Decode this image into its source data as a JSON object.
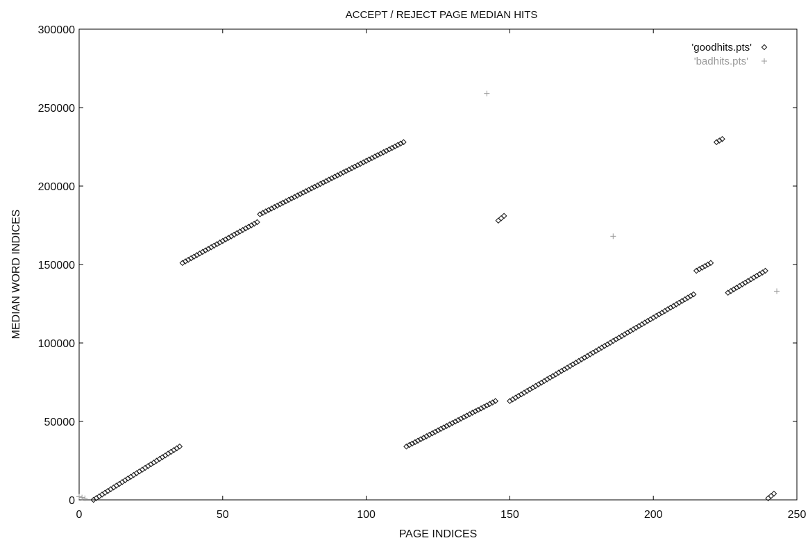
{
  "chart_data": {
    "type": "scatter",
    "title": "ACCEPT / REJECT PAGE MEDIAN HITS",
    "xlabel": "PAGE INDICES",
    "ylabel": "MEDIAN WORD INDICES",
    "xlim": [
      0,
      250
    ],
    "ylim": [
      0,
      300000
    ],
    "xticks": [
      "0",
      "50",
      "100",
      "150",
      "200",
      "250"
    ],
    "yticks": [
      "0",
      "50000",
      "100000",
      "150000",
      "200000",
      "250000",
      "300000"
    ],
    "grid": false,
    "legend_position": "top-right",
    "series": [
      {
        "name": "'goodhits.pts'",
        "marker": "diamond",
        "color": "#222222",
        "segments": [
          {
            "x": [
              5,
              35
            ],
            "y": [
              0,
              34000
            ]
          },
          {
            "x": [
              36,
              62
            ],
            "y": [
              151000,
              177000
            ]
          },
          {
            "x": [
              63,
              113
            ],
            "y": [
              182000,
              228000
            ]
          },
          {
            "x": [
              114,
              145
            ],
            "y": [
              34000,
              63000
            ]
          },
          {
            "x": [
              146,
              148
            ],
            "y": [
              178000,
              181000
            ]
          },
          {
            "x": [
              150,
              214
            ],
            "y": [
              63000,
              131000
            ]
          },
          {
            "x": [
              215,
              220
            ],
            "y": [
              146000,
              151000
            ]
          },
          {
            "x": [
              222,
              224
            ],
            "y": [
              228000,
              230000
            ]
          },
          {
            "x": [
              226,
              239
            ],
            "y": [
              132000,
              146000
            ]
          },
          {
            "x": [
              240,
              242
            ],
            "y": [
              1000,
              4000
            ]
          }
        ]
      },
      {
        "name": "'badhits.pts'",
        "marker": "cross",
        "color": "#9a9a9a",
        "points": [
          [
            0,
            2000
          ],
          [
            1,
            1500
          ],
          [
            2,
            1000
          ],
          [
            142,
            259000
          ],
          [
            186,
            168000
          ],
          [
            243,
            133000
          ]
        ]
      }
    ]
  }
}
